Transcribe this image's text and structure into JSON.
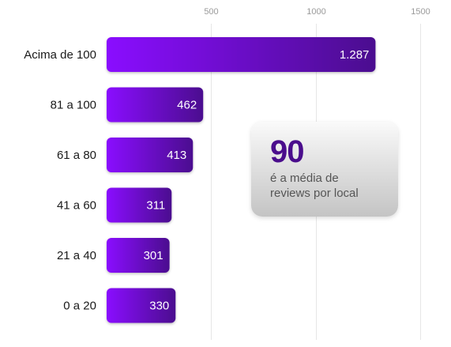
{
  "chart_data": {
    "type": "bar",
    "orientation": "horizontal",
    "categories": [
      "Acima de 100",
      "81 a 100",
      "61 a 80",
      "41 a 60",
      "21 a 40",
      "0 a 20"
    ],
    "values": [
      1287,
      462,
      413,
      311,
      301,
      330
    ],
    "value_labels": [
      "1.287",
      "462",
      "413",
      "311",
      "301",
      "330"
    ],
    "x_ticks": [
      "500",
      "1000",
      "1500"
    ],
    "xlim": [
      0,
      1500
    ],
    "grid": true,
    "legend": "none"
  },
  "colors": {
    "bar_start": "#8a08ff",
    "bar_end": "#4b0c8f",
    "stat_number": "#4a0d8c"
  },
  "stat_card": {
    "number": "90",
    "caption": "é a média de reviews por local"
  }
}
